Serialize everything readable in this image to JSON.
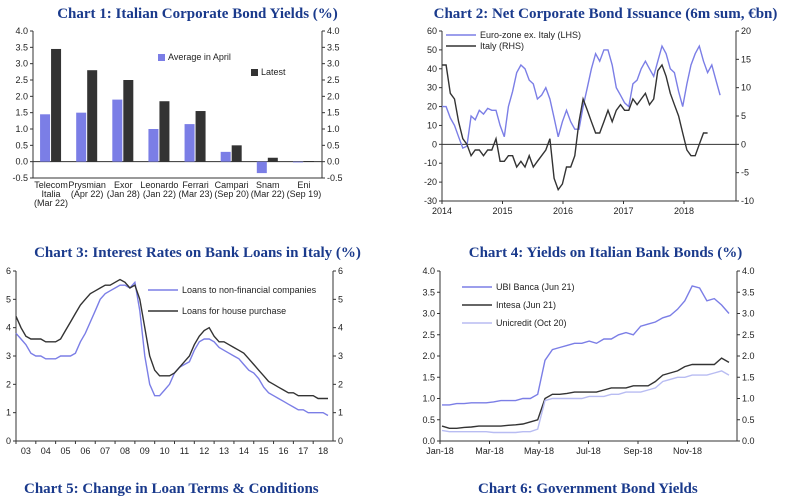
{
  "colors": {
    "title": "#1a3a8c",
    "blue": "#7b7ee6",
    "dark": "#333333",
    "light": "#b8bcf2"
  },
  "chart_data": [
    {
      "id": "c1",
      "type": "bar",
      "title": "Chart 1: Italian Corporate Bond Yields (%)",
      "categories": [
        [
          "Telecom",
          "Italia",
          "(Mar 22)"
        ],
        [
          "Prysmian",
          "(Apr 22)"
        ],
        [
          "Exor",
          "(Jan 28)"
        ],
        [
          "Leonardo",
          "(Jan 22)"
        ],
        [
          "Ferrari",
          "(Mar 23)"
        ],
        [
          "Campari",
          "(Sep 20)"
        ],
        [
          "Snam",
          "(Mar 22)"
        ],
        [
          "Eni",
          "(Sep 19)"
        ]
      ],
      "series": [
        {
          "name": "Average in April",
          "color": "#7b7ee6",
          "values": [
            1.45,
            1.5,
            1.9,
            1.0,
            1.15,
            0.3,
            -0.35,
            0.0
          ]
        },
        {
          "name": "Latest",
          "color": "#333333",
          "values": [
            3.45,
            2.8,
            2.5,
            1.85,
            1.55,
            0.5,
            0.12,
            0.02
          ]
        }
      ],
      "ylim": [
        -0.5,
        4.0
      ],
      "yticks": [
        "-0.5",
        "0.0",
        "0.5",
        "1.0",
        "1.5",
        "2.0",
        "2.5",
        "3.0",
        "3.5",
        "4.0"
      ],
      "legend": "top-right"
    },
    {
      "id": "c2",
      "type": "line",
      "title": "Chart 2: Net Corporate Bond Issuance (6m sum, €bn)",
      "start_year": 2014,
      "step_months": 1,
      "ylim_left": [
        -30,
        60
      ],
      "ylim_right": [
        -10,
        20
      ],
      "yticks_left": [
        "-30",
        "-20",
        "-10",
        "0",
        "10",
        "20",
        "30",
        "40",
        "50",
        "60"
      ],
      "yticks_right": [
        "-10",
        "-5",
        "0",
        "5",
        "10",
        "15",
        "20"
      ],
      "xticks": [
        "2014",
        "2015",
        "2016",
        "2017",
        "2018"
      ],
      "series": [
        {
          "name": "Euro-zone ex. Italy (LHS)",
          "axis": "left",
          "color": "#7b7ee6",
          "values": [
            20,
            20,
            14,
            10,
            4,
            -2,
            -1,
            15,
            13,
            18,
            16,
            19,
            18,
            18,
            10,
            4,
            20,
            28,
            38,
            42,
            40,
            34,
            32,
            24,
            26,
            30,
            24,
            14,
            4,
            12,
            18,
            12,
            8,
            8,
            20,
            30,
            40,
            48,
            44,
            50,
            50,
            42,
            30,
            26,
            22,
            20,
            32,
            34,
            40,
            44,
            40,
            36,
            44,
            52,
            48,
            40,
            38,
            28,
            20,
            32,
            42,
            48,
            52,
            44,
            38,
            42,
            34,
            26
          ]
        },
        {
          "name": "Italy (RHS)",
          "axis": "right",
          "color": "#333333",
          "values": [
            14,
            14,
            9,
            8,
            4,
            1,
            0,
            -2,
            -1,
            -1,
            -2,
            -1,
            -1,
            1,
            -3,
            -3,
            -2,
            -2,
            -4,
            -3,
            -4,
            -2,
            -4,
            -3,
            -2,
            -1,
            1,
            -6,
            -8,
            -7,
            -4,
            -4,
            -2,
            4,
            8,
            6,
            4,
            2,
            2,
            4,
            6,
            4,
            6,
            7,
            6,
            6,
            8,
            7,
            8,
            9,
            7,
            8,
            13,
            14,
            12,
            9,
            7,
            5,
            2,
            -1,
            -2,
            -2,
            0,
            2,
            2
          ]
        }
      ],
      "legend": "top-left"
    },
    {
      "id": "c3",
      "type": "line",
      "title": "Chart 3: Interest Rates on Bank Loans in Italy (%)",
      "start_year": 2003,
      "step_months": 3,
      "ylim": [
        0,
        6
      ],
      "yticks": [
        "0",
        "1",
        "2",
        "3",
        "4",
        "5",
        "6"
      ],
      "xticks": [
        "03",
        "04",
        "05",
        "06",
        "07",
        "08",
        "09",
        "10",
        "11",
        "12",
        "13",
        "14",
        "15",
        "16",
        "17",
        "18"
      ],
      "series": [
        {
          "name": "Loans to non-financial companies",
          "color": "#7b7ee6",
          "values": [
            3.8,
            3.6,
            3.4,
            3.1,
            3.0,
            3.0,
            2.9,
            2.9,
            2.9,
            3.0,
            3.0,
            3.0,
            3.1,
            3.5,
            3.8,
            4.2,
            4.6,
            5.0,
            5.2,
            5.3,
            5.4,
            5.5,
            5.5,
            5.4,
            5.6,
            4.6,
            3.0,
            2.0,
            1.6,
            1.6,
            1.8,
            2.0,
            2.4,
            2.6,
            2.7,
            2.8,
            3.2,
            3.5,
            3.6,
            3.6,
            3.5,
            3.3,
            3.2,
            3.1,
            3.0,
            2.9,
            2.7,
            2.5,
            2.4,
            2.2,
            1.9,
            1.7,
            1.6,
            1.5,
            1.4,
            1.3,
            1.2,
            1.1,
            1.1,
            1.0,
            1.0,
            1.0,
            1.0,
            0.9
          ]
        },
        {
          "name": "Loans for house purchase",
          "color": "#333333",
          "values": [
            4.4,
            4.0,
            3.7,
            3.6,
            3.6,
            3.6,
            3.5,
            3.5,
            3.5,
            3.6,
            3.9,
            4.2,
            4.5,
            4.8,
            5.0,
            5.2,
            5.3,
            5.4,
            5.5,
            5.5,
            5.6,
            5.7,
            5.6,
            5.4,
            5.5,
            5.0,
            4.0,
            3.0,
            2.5,
            2.3,
            2.3,
            2.3,
            2.4,
            2.6,
            2.8,
            3.0,
            3.4,
            3.7,
            3.9,
            4.0,
            3.7,
            3.5,
            3.5,
            3.4,
            3.3,
            3.2,
            3.1,
            2.9,
            2.7,
            2.5,
            2.3,
            2.1,
            2.0,
            1.9,
            1.8,
            1.7,
            1.7,
            1.6,
            1.6,
            1.6,
            1.6,
            1.5,
            1.5,
            1.5
          ]
        }
      ],
      "legend": "top-right"
    },
    {
      "id": "c4",
      "type": "line",
      "title": "Chart 4: Yields on Italian Bank Bonds (%)",
      "ylim": [
        0,
        4.0
      ],
      "yticks": [
        "0.0",
        "0.5",
        "1.0",
        "1.5",
        "2.0",
        "2.5",
        "3.0",
        "3.5",
        "4.0"
      ],
      "xticks": [
        "Jan-18",
        "Mar-18",
        "May-18",
        "Jul-18",
        "Sep-18",
        "Nov-18"
      ],
      "series": [
        {
          "name": "UBI Banca (Jun 21)",
          "color": "#7b7ee6",
          "values": [
            0.85,
            0.85,
            0.88,
            0.88,
            0.9,
            0.9,
            0.9,
            0.92,
            0.95,
            0.95,
            0.95,
            1.0,
            1.0,
            1.1,
            1.9,
            2.15,
            2.2,
            2.25,
            2.3,
            2.3,
            2.35,
            2.3,
            2.4,
            2.4,
            2.5,
            2.55,
            2.5,
            2.7,
            2.75,
            2.8,
            2.9,
            2.95,
            3.1,
            3.3,
            3.65,
            3.6,
            3.3,
            3.35,
            3.2,
            3.0
          ]
        },
        {
          "name": "Intesa (Jun 21)",
          "color": "#333333",
          "values": [
            0.35,
            0.3,
            0.3,
            0.32,
            0.33,
            0.35,
            0.35,
            0.35,
            0.35,
            0.37,
            0.38,
            0.4,
            0.45,
            0.5,
            1.0,
            1.1,
            1.1,
            1.12,
            1.15,
            1.15,
            1.15,
            1.15,
            1.2,
            1.25,
            1.25,
            1.25,
            1.3,
            1.3,
            1.3,
            1.4,
            1.55,
            1.6,
            1.65,
            1.75,
            1.8,
            1.8,
            1.8,
            1.8,
            1.95,
            1.85
          ]
        },
        {
          "name": "Unicredit (Oct 20)",
          "color": "#b8bcf2",
          "values": [
            0.25,
            0.22,
            0.22,
            0.22,
            0.22,
            0.22,
            0.22,
            0.2,
            0.2,
            0.2,
            0.2,
            0.22,
            0.22,
            0.28,
            0.95,
            1.0,
            1.0,
            1.0,
            1.0,
            1.0,
            1.05,
            1.05,
            1.05,
            1.1,
            1.1,
            1.15,
            1.15,
            1.15,
            1.2,
            1.25,
            1.4,
            1.45,
            1.5,
            1.5,
            1.55,
            1.55,
            1.55,
            1.6,
            1.65,
            1.55
          ]
        }
      ],
      "legend": "top-left"
    }
  ],
  "next_titles": [
    "Chart 5: Change in Loan Terms & Conditions",
    "Chart 6: Government Bond Yields"
  ]
}
